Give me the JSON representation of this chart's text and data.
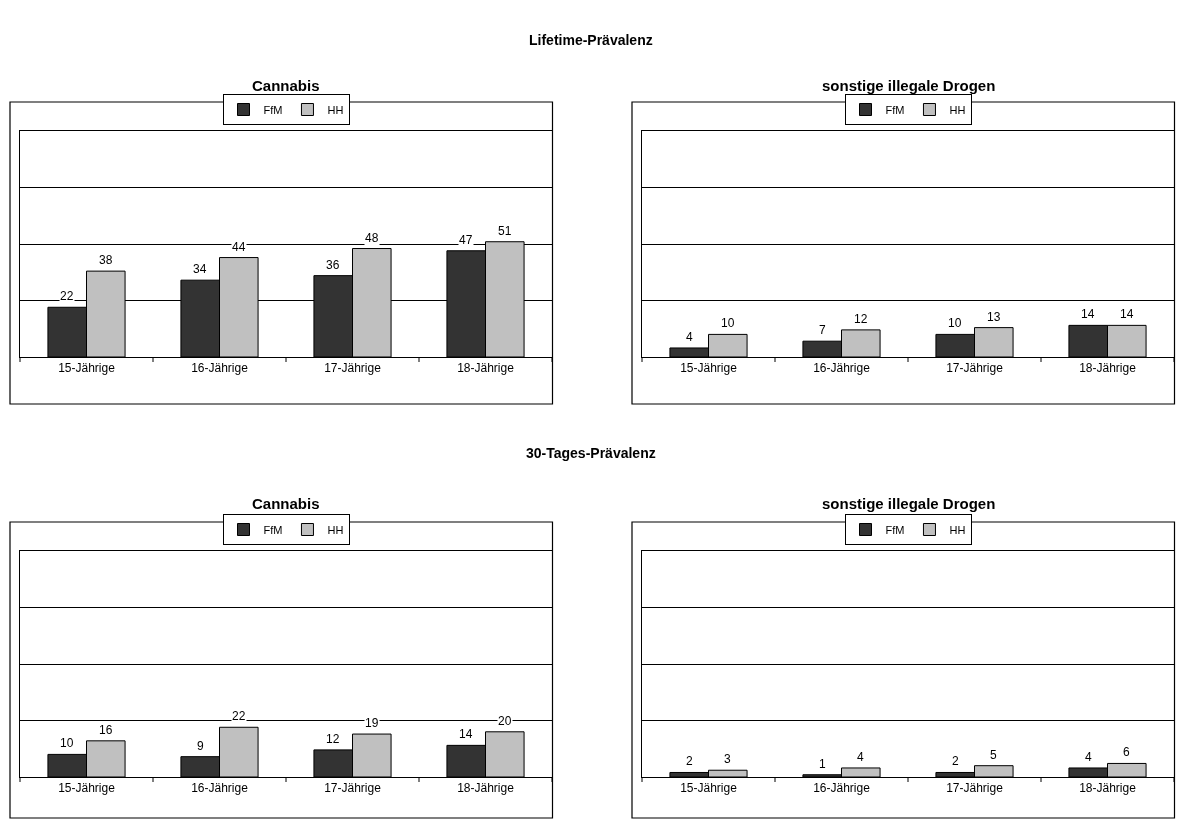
{
  "chart_data": [
    {
      "type": "bar",
      "title": "Cannabis",
      "annotations": [
        "Lifetime-Prävalenz"
      ],
      "categories": [
        "15-Jährige",
        "16-Jährige",
        "17-Jährige",
        "18-Jährige"
      ],
      "series": [
        {
          "name": "FfM",
          "color": "#333333",
          "values": [
            22,
            34,
            36,
            47
          ]
        },
        {
          "name": "HH",
          "color": "#c0c0c0",
          "values": [
            38,
            44,
            48,
            51
          ]
        }
      ],
      "ylim": [
        0,
        100
      ],
      "yticks": [
        {
          "value": 0,
          "label": null
        },
        {
          "value": 25,
          "label": null
        },
        {
          "value": 50,
          "label": null
        },
        {
          "value": 75,
          "label": null
        },
        {
          "value": 100,
          "label": null
        }
      ],
      "grid": "y",
      "legend": "top",
      "tick_labels": "x",
      "data_labels": true
    },
    {
      "type": "bar",
      "title": "sonstige illegale Drogen",
      "categories": [
        "15-Jährige",
        "16-Jährige",
        "17-Jährige",
        "18-Jährige"
      ],
      "series": [
        {
          "name": "FfM",
          "color": "#333333",
          "values": [
            4,
            7,
            10,
            14
          ]
        },
        {
          "name": "HH",
          "color": "#c0c0c0",
          "values": [
            10,
            12,
            13,
            14
          ]
        }
      ],
      "ylim": [
        0,
        100
      ],
      "yticks": [
        {
          "value": 0,
          "label": null
        },
        {
          "value": 25,
          "label": null
        },
        {
          "value": 50,
          "label": null
        },
        {
          "value": 75,
          "label": null
        },
        {
          "value": 100,
          "label": null
        }
      ],
      "grid": "y",
      "legend": "top",
      "tick_labels": "x",
      "data_labels": true
    },
    {
      "type": "bar",
      "title": "Cannabis",
      "annotations": [
        "30-Tages-Prävalenz"
      ],
      "categories": [
        "15-Jährige",
        "16-Jährige",
        "17-Jährige",
        "18-Jährige"
      ],
      "series": [
        {
          "name": "FfM",
          "color": "#333333",
          "values": [
            10,
            9,
            12,
            14
          ]
        },
        {
          "name": "HH",
          "color": "#c0c0c0",
          "values": [
            16,
            22,
            19,
            20
          ]
        }
      ],
      "ylim": [
        0,
        100
      ],
      "yticks": [
        {
          "value": 0,
          "label": null
        },
        {
          "value": 25,
          "label": null
        },
        {
          "value": 50,
          "label": null
        },
        {
          "value": 75,
          "label": null
        },
        {
          "value": 100,
          "label": null
        }
      ],
      "grid": "y",
      "legend": "top",
      "tick_labels": "x",
      "data_labels": true
    },
    {
      "type": "bar",
      "title": "sonstige illegale Drogen",
      "categories": [
        "15-Jährige",
        "16-Jährige",
        "17-Jährige",
        "18-Jährige"
      ],
      "series": [
        {
          "name": "FfM",
          "color": "#333333",
          "values": [
            2,
            1,
            2,
            4
          ]
        },
        {
          "name": "HH",
          "color": "#c0c0c0",
          "values": [
            3,
            4,
            5,
            6
          ]
        }
      ],
      "ylim": [
        0,
        100
      ],
      "yticks": [
        {
          "value": 0,
          "label": null
        },
        {
          "value": 25,
          "label": null
        },
        {
          "value": 50,
          "label": null
        },
        {
          "value": 75,
          "label": null
        },
        {
          "value": 100,
          "label": null
        }
      ],
      "grid": "y",
      "legend": "top",
      "tick_labels": "x",
      "data_labels": true
    }
  ]
}
